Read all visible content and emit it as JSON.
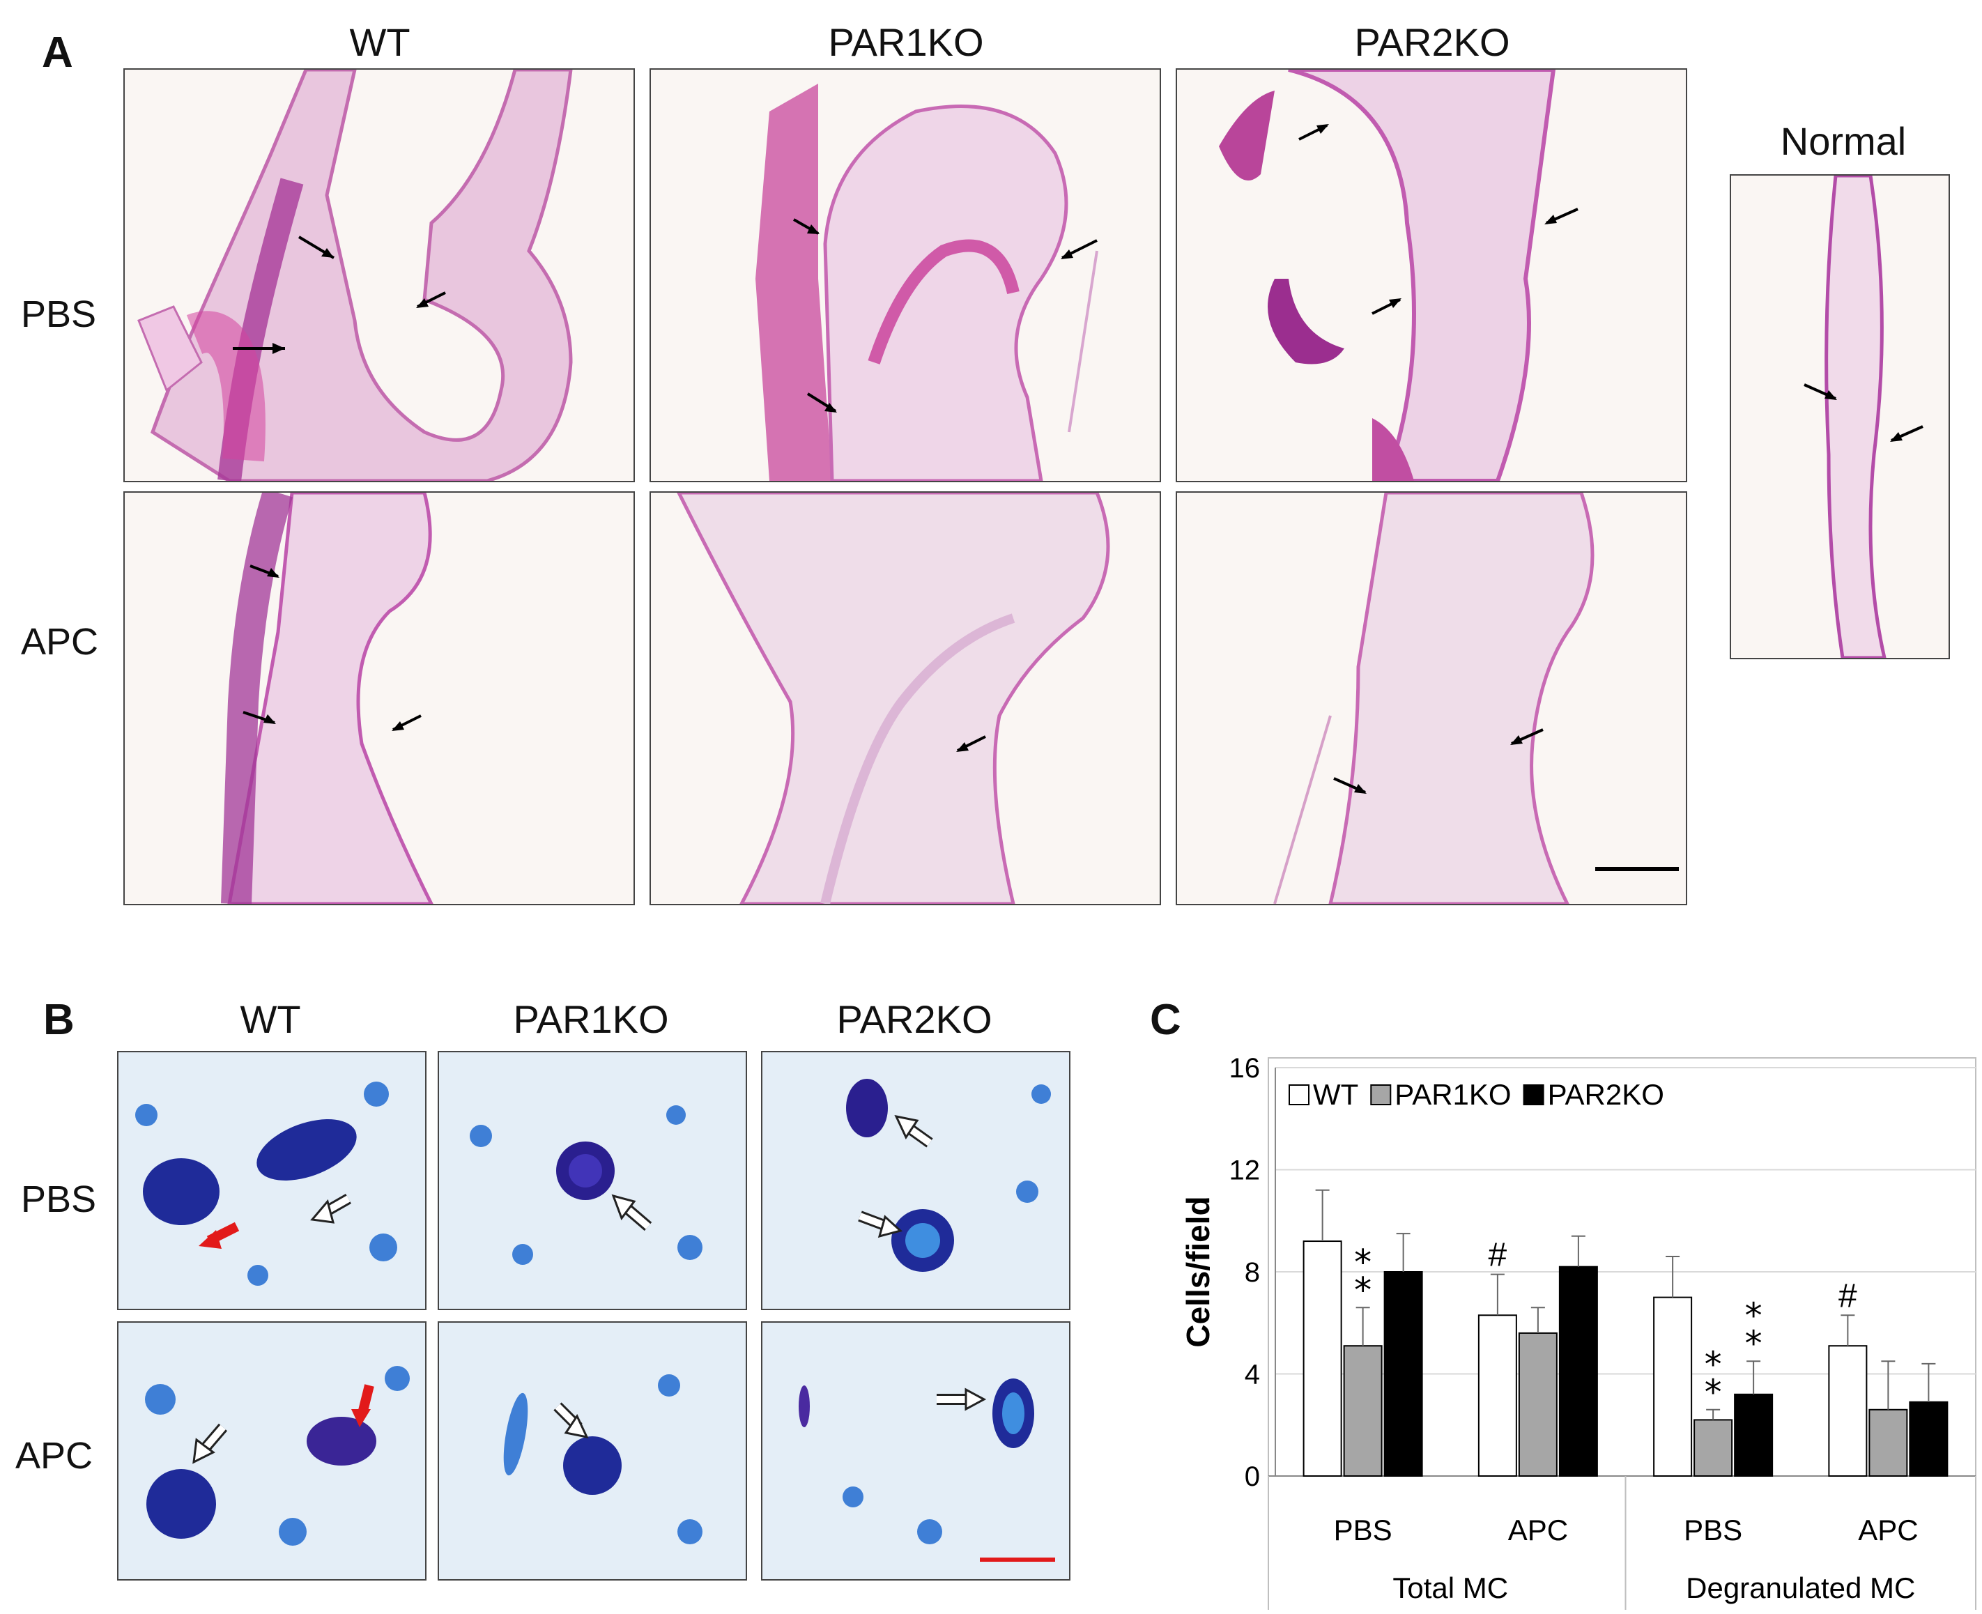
{
  "panel_a": {
    "letter": "A",
    "columns": [
      "WT",
      "PAR1KO",
      "PAR2KO"
    ],
    "rows": [
      "PBS",
      "APC"
    ],
    "normal_label": "Normal"
  },
  "panel_b": {
    "letter": "B",
    "columns": [
      "WT",
      "PAR1KO",
      "PAR2KO"
    ],
    "rows": [
      "PBS",
      "APC"
    ]
  },
  "panel_c": {
    "letter": "C",
    "chart_data": {
      "type": "bar",
      "ylabel": "Cells/field",
      "ylim": [
        0,
        16
      ],
      "yticks": [
        0,
        4,
        8,
        12,
        16
      ],
      "grid": true,
      "legend_position": "top-left",
      "groups": [
        {
          "label": "Total MC",
          "subgroups": [
            "PBS",
            "APC"
          ]
        },
        {
          "label": "Degranulated MC",
          "subgroups": [
            "PBS",
            "APC"
          ]
        }
      ],
      "categories": [
        "PBS",
        "APC",
        "PBS",
        "APC"
      ],
      "series": [
        {
          "name": "WT",
          "color": "#ffffff",
          "values": [
            9.2,
            6.3,
            7.0,
            5.1
          ],
          "errors": [
            2.0,
            1.6,
            1.6,
            1.2
          ]
        },
        {
          "name": "PAR1KO",
          "color": "#a6a6a6",
          "values": [
            5.1,
            5.6,
            2.2,
            2.6
          ],
          "errors": [
            1.5,
            1.0,
            0.4,
            1.9
          ]
        },
        {
          "name": "PAR2KO",
          "color": "#000000",
          "values": [
            8.0,
            8.2,
            3.2,
            2.9
          ],
          "errors": [
            1.5,
            1.2,
            1.3,
            1.5
          ]
        }
      ],
      "annotations": [
        {
          "category_index": 0,
          "series": "PAR1KO",
          "text": "**"
        },
        {
          "category_index": 1,
          "series": "WT",
          "text": "#"
        },
        {
          "category_index": 2,
          "series": "PAR1KO",
          "text": "**"
        },
        {
          "category_index": 2,
          "series": "PAR2KO",
          "text": "**"
        },
        {
          "category_index": 3,
          "series": "WT",
          "text": "#"
        }
      ]
    }
  }
}
